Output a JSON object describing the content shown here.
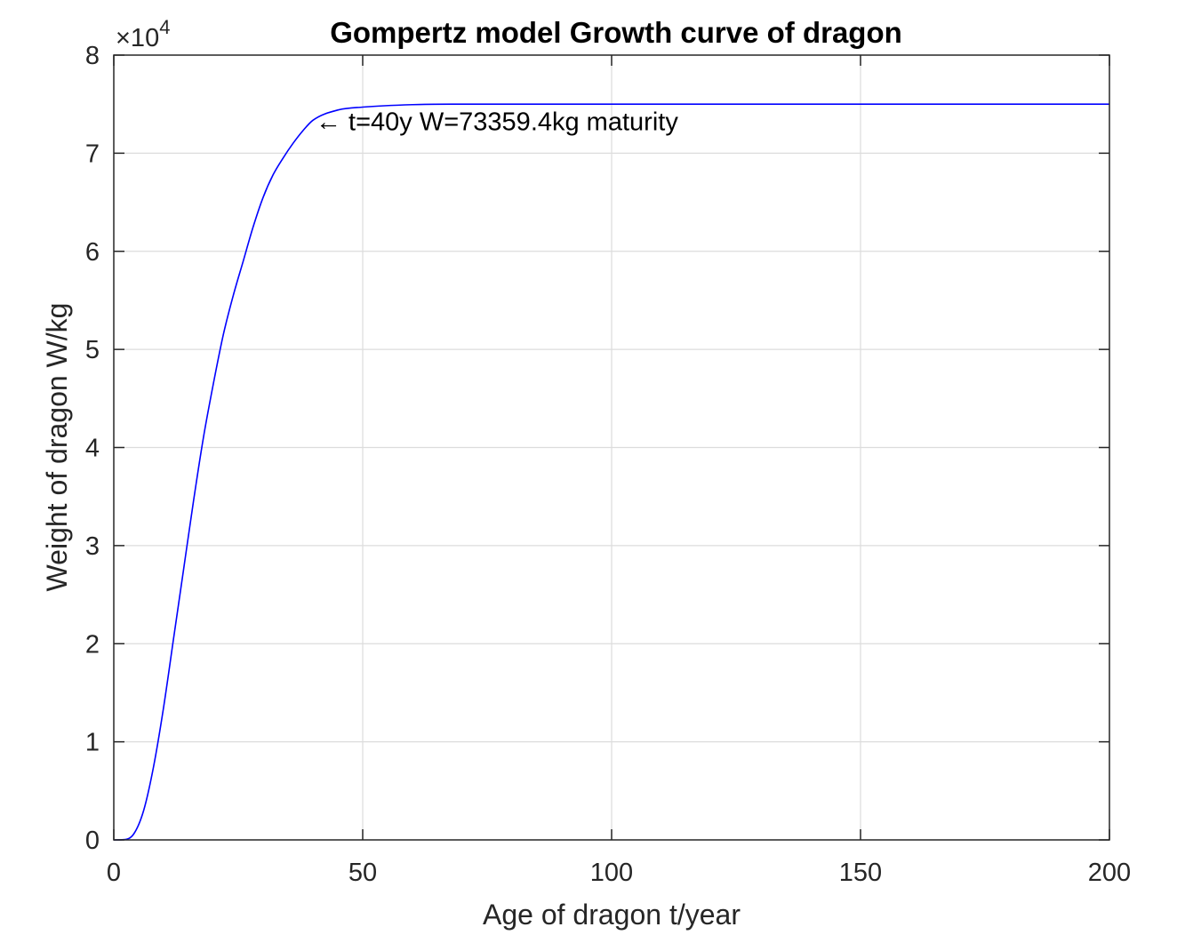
{
  "chart_data": {
    "type": "line",
    "title": "Gompertz model Growth curve of dragon",
    "xlabel": "Age of dragon  t/year",
    "ylabel": "Weight of dragon   W/kg",
    "xlim": [
      0,
      200
    ],
    "ylim": [
      0,
      80000
    ],
    "xticks": [
      0,
      50,
      100,
      150,
      200
    ],
    "xtick_labels": [
      "0",
      "50",
      "100",
      "150",
      "200"
    ],
    "yticks": [
      0,
      10000,
      20000,
      30000,
      40000,
      50000,
      60000,
      70000,
      80000
    ],
    "ytick_labels": [
      "0",
      "1",
      "2",
      "3",
      "4",
      "5",
      "6",
      "7",
      "8"
    ],
    "y_exponent": {
      "prefix": "×10",
      "power": "4"
    },
    "grid": true,
    "series": [
      {
        "color": "#0000ff",
        "points": [
          [
            0,
            0
          ],
          [
            2,
            30
          ],
          [
            4,
            600
          ],
          [
            6,
            3000
          ],
          [
            8,
            7500
          ],
          [
            10,
            13500
          ],
          [
            12,
            20500
          ],
          [
            14,
            27500
          ],
          [
            16,
            34500
          ],
          [
            18,
            41000
          ],
          [
            20,
            46500
          ],
          [
            22,
            51500
          ],
          [
            24,
            55500
          ],
          [
            26,
            59000
          ],
          [
            28,
            62500
          ],
          [
            30,
            65500
          ],
          [
            32,
            67800
          ],
          [
            34,
            69500
          ],
          [
            36,
            71000
          ],
          [
            38,
            72300
          ],
          [
            40,
            73359.4
          ],
          [
            45,
            74400
          ],
          [
            50,
            74700
          ],
          [
            60,
            74950
          ],
          [
            70,
            75000
          ],
          [
            100,
            75000
          ],
          [
            150,
            75000
          ],
          [
            200,
            75000
          ]
        ]
      }
    ],
    "annotations": [
      {
        "x": 40,
        "y": 73359.4,
        "text": "← t=40y W=73359.4kg maturity"
      }
    ]
  }
}
